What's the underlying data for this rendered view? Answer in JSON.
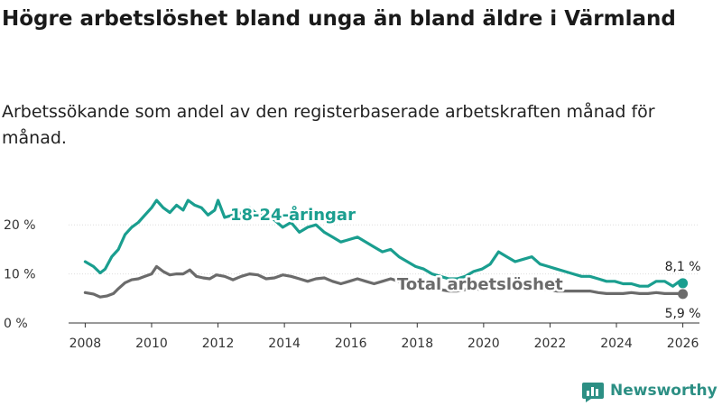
{
  "title": "Högre arbetslöshet bland unga än bland äldre i Värmland",
  "subtitle": "Arbetssökande som andel av den registerbaserade arbetskraften månad för månad.",
  "brand": "Newsworthy",
  "colors": {
    "youth": "#1a9e8f",
    "total": "#6b6b6b",
    "grid": "#dddddd",
    "axis": "#333333",
    "brand": "#2c8f84"
  },
  "chart_data": {
    "type": "line",
    "title": "Högre arbetslöshet bland unga än bland äldre i Värmland",
    "xlabel": "",
    "ylabel": "",
    "xlim": [
      2007.5,
      2026.5
    ],
    "ylim": [
      0,
      25
    ],
    "x_ticks": [
      2008,
      2010,
      2012,
      2014,
      2016,
      2018,
      2020,
      2022,
      2024,
      2026
    ],
    "x_tick_labels": [
      "2008",
      "2010",
      "2012",
      "2014",
      "2016",
      "2018",
      "2020",
      "2022",
      "2024",
      "2026"
    ],
    "y_ticks": [
      0,
      10,
      20
    ],
    "y_tick_labels": [
      "0 %",
      "10 %",
      "20 %"
    ],
    "series": [
      {
        "name": "18-24-åringar",
        "x": [
          2008.0,
          2008.25,
          2008.45,
          2008.6,
          2008.8,
          2009.0,
          2009.2,
          2009.4,
          2009.6,
          2009.8,
          2010.0,
          2010.15,
          2010.35,
          2010.55,
          2010.75,
          2010.95,
          2011.1,
          2011.3,
          2011.5,
          2011.7,
          2011.9,
          2012.0,
          2012.2,
          2012.45,
          2012.7,
          2012.95,
          2013.2,
          2013.45,
          2013.7,
          2013.95,
          2014.2,
          2014.45,
          2014.7,
          2014.95,
          2015.2,
          2015.45,
          2015.7,
          2015.95,
          2016.2,
          2016.45,
          2016.7,
          2016.95,
          2017.2,
          2017.45,
          2017.7,
          2017.95,
          2018.2,
          2018.45,
          2018.7,
          2018.95,
          2019.2,
          2019.45,
          2019.7,
          2019.95,
          2020.2,
          2020.45,
          2020.7,
          2020.95,
          2021.2,
          2021.45,
          2021.7,
          2021.95,
          2022.2,
          2022.45,
          2022.7,
          2022.95,
          2023.2,
          2023.45,
          2023.7,
          2023.95,
          2024.2,
          2024.45,
          2024.7,
          2024.95,
          2025.2,
          2025.45,
          2025.7,
          2025.9,
          2026.0
        ],
        "values": [
          12.5,
          11.5,
          10.2,
          11.0,
          13.5,
          15.0,
          18.0,
          19.5,
          20.5,
          22.0,
          23.5,
          25.0,
          23.5,
          22.5,
          24.0,
          23.0,
          25.0,
          24.0,
          23.5,
          22.0,
          23.0,
          25.0,
          21.5,
          22.0,
          22.5,
          23.5,
          22.0,
          22.5,
          21.0,
          19.5,
          20.5,
          18.5,
          19.5,
          20.0,
          18.5,
          17.5,
          16.5,
          17.0,
          17.5,
          16.5,
          15.5,
          14.5,
          15.0,
          13.5,
          12.5,
          11.5,
          11.0,
          10.0,
          9.5,
          9.0,
          9.0,
          9.5,
          10.5,
          11.0,
          12.0,
          14.5,
          13.5,
          12.5,
          13.0,
          13.5,
          12.0,
          11.5,
          11.0,
          10.5,
          10.0,
          9.5,
          9.5,
          9.0,
          8.5,
          8.5,
          8.0,
          8.0,
          7.5,
          7.5,
          8.5,
          8.5,
          7.5,
          8.5,
          8.1
        ],
        "end_label": "8,1 %",
        "label": "18-24-åringar"
      },
      {
        "name": "Total arbetslöshet",
        "x": [
          2008.0,
          2008.25,
          2008.45,
          2008.65,
          2008.85,
          2009.0,
          2009.2,
          2009.4,
          2009.6,
          2009.8,
          2010.0,
          2010.15,
          2010.35,
          2010.55,
          2010.75,
          2010.95,
          2011.15,
          2011.35,
          2011.55,
          2011.75,
          2011.95,
          2012.2,
          2012.45,
          2012.7,
          2012.95,
          2013.2,
          2013.45,
          2013.7,
          2013.95,
          2014.2,
          2014.45,
          2014.7,
          2014.95,
          2015.2,
          2015.45,
          2015.7,
          2015.95,
          2016.2,
          2016.45,
          2016.7,
          2016.95,
          2017.2,
          2017.45,
          2017.7,
          2017.95,
          2018.2,
          2018.45,
          2018.7,
          2018.95,
          2019.2,
          2019.45,
          2019.7,
          2019.95,
          2020.2,
          2020.45,
          2020.7,
          2020.95,
          2021.2,
          2021.45,
          2021.7,
          2021.95,
          2022.2,
          2022.45,
          2022.7,
          2022.95,
          2023.2,
          2023.45,
          2023.7,
          2023.95,
          2024.2,
          2024.45,
          2024.7,
          2024.95,
          2025.2,
          2025.45,
          2025.7,
          2025.9,
          2026.0
        ],
        "values": [
          6.2,
          5.9,
          5.3,
          5.5,
          6.0,
          7.0,
          8.2,
          8.8,
          9.0,
          9.5,
          10.0,
          11.5,
          10.5,
          9.8,
          10.0,
          10.0,
          10.8,
          9.5,
          9.2,
          9.0,
          9.8,
          9.5,
          8.8,
          9.5,
          10.0,
          9.8,
          9.0,
          9.2,
          9.8,
          9.5,
          9.0,
          8.5,
          9.0,
          9.2,
          8.5,
          8.0,
          8.5,
          9.0,
          8.5,
          8.0,
          8.5,
          9.0,
          8.5,
          7.8,
          7.5,
          7.2,
          7.0,
          6.8,
          6.5,
          6.5,
          6.8,
          7.0,
          6.8,
          7.0,
          7.5,
          7.5,
          7.0,
          7.0,
          7.2,
          7.0,
          6.8,
          6.5,
          6.5,
          6.5,
          6.5,
          6.5,
          6.2,
          6.0,
          6.0,
          6.0,
          6.2,
          6.0,
          6.0,
          6.2,
          6.0,
          6.0,
          6.0,
          5.9
        ],
        "end_label": "5,9 %",
        "label": "Total arbetslöshet"
      }
    ],
    "legend": "inline"
  }
}
